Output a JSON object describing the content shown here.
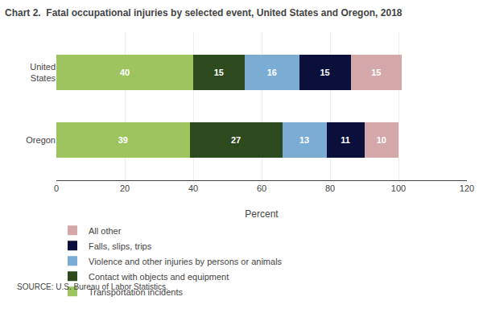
{
  "chart_data": {
    "type": "bar",
    "orientation": "horizontal",
    "stacked": true,
    "data_labels": true,
    "title": "Chart 2.  Fatal occupational injuries by selected event, United States and Oregon, 2018",
    "categories": [
      "Oregon",
      "United\nStates"
    ],
    "series": [
      {
        "name": "Transportation incidents",
        "color": "#9dc45f",
        "values": [
          39,
          40
        ]
      },
      {
        "name": "Contact with objects and equipment",
        "color": "#2d4a1e",
        "values": [
          27,
          15
        ]
      },
      {
        "name": "Violence and other injuries by persons or animals",
        "color": "#7badd4",
        "values": [
          13,
          16
        ]
      },
      {
        "name": "Falls, slips, trips",
        "color": "#0a0f3c",
        "values": [
          11,
          15
        ]
      },
      {
        "name": "All other",
        "color": "#d4a8a8",
        "values": [
          10,
          15
        ]
      }
    ],
    "xlabel": "Percent",
    "xlim": [
      0,
      120
    ],
    "xticks": [
      0,
      20,
      40,
      60,
      80,
      100,
      120
    ],
    "grid": true,
    "legend": "bottom",
    "annotations": [
      "SOURCE: U.S. Bureau of Labor Statistics."
    ]
  }
}
